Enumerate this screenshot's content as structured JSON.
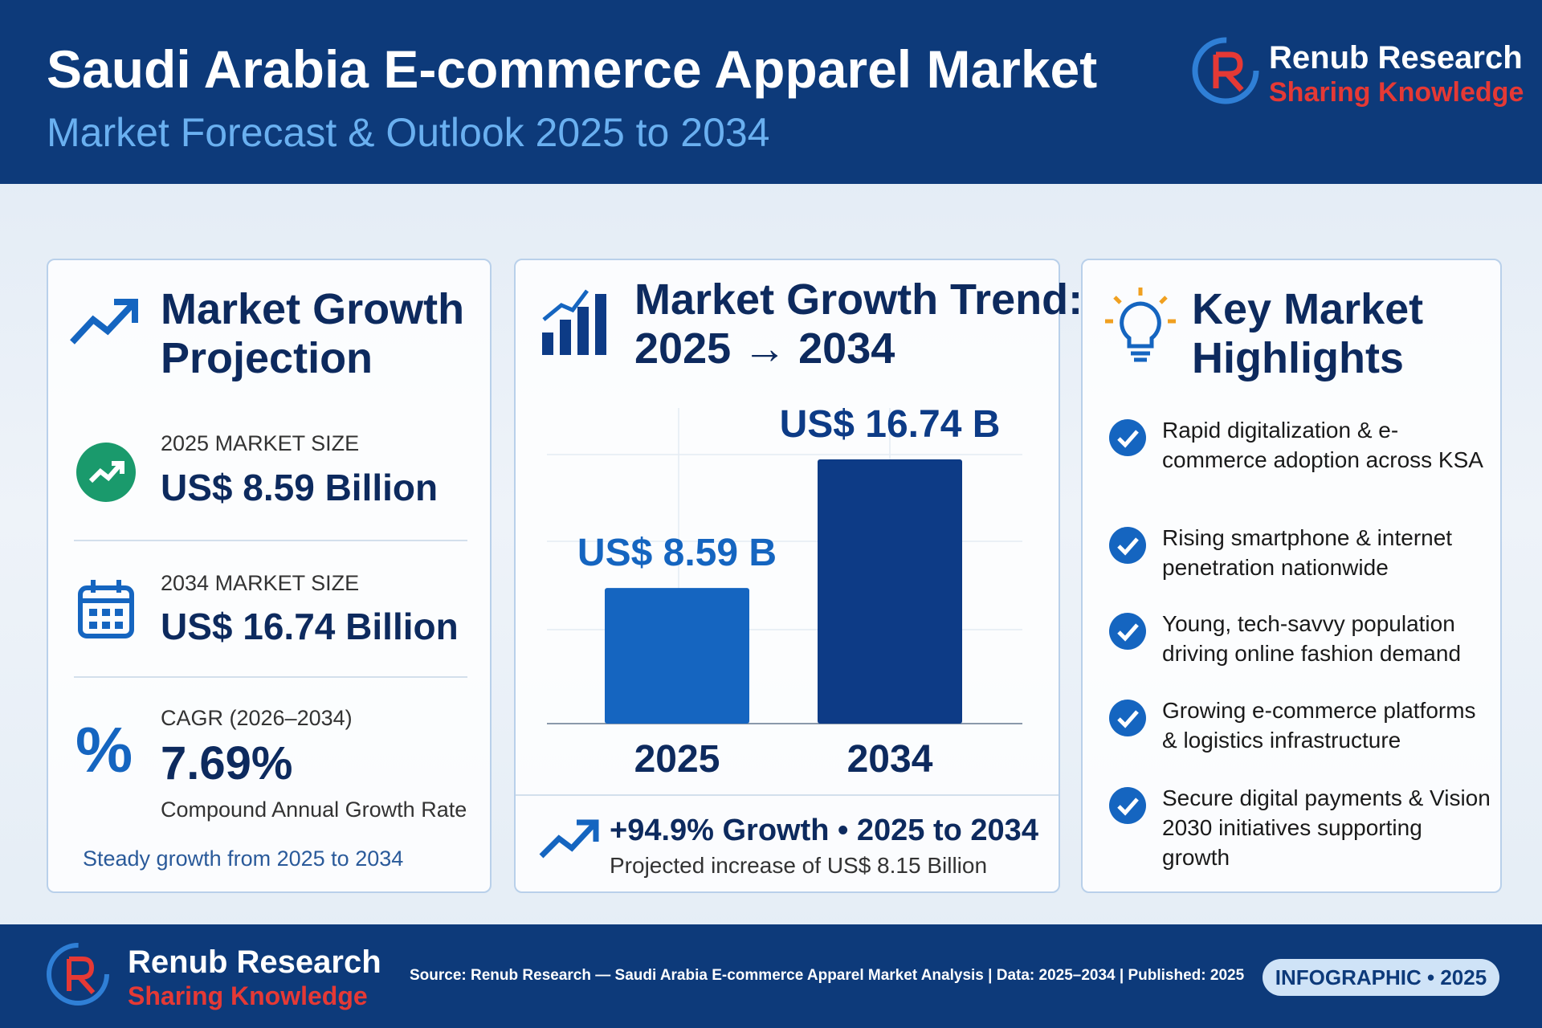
{
  "header": {
    "title": "Saudi Arabia E-commerce Apparel Market",
    "subtitle": "Market Forecast & Outlook 2025 to 2034",
    "brand": "Renub Research",
    "tagline": "Sharing Knowledge"
  },
  "projection": {
    "title": "Market Growth Projection",
    "items": [
      {
        "label": "2025 MARKET SIZE",
        "value": "US$ 8.59 Billion"
      },
      {
        "label": "2034 MARKET SIZE",
        "value": "US$ 16.74 Billion"
      }
    ],
    "cagr": {
      "icon": "%",
      "label": "CAGR (2026–2034)",
      "value": "7.69%",
      "caption": "Compound Annual Growth Rate"
    },
    "note": "Steady growth from 2025 to 2034"
  },
  "chart_data": {
    "type": "bar",
    "title": "Market Growth Trend: 2025 → 2034",
    "categories": [
      "2025",
      "2034"
    ],
    "values": [
      8.59,
      16.74
    ],
    "value_labels": [
      "US$ 8.59 B",
      "US$ 16.74 B"
    ],
    "colors": [
      "#1565c0",
      "#0d3b86"
    ],
    "growth": "+94.9% Growth • 2025 to 2034",
    "growth_note": "Projected increase of US$ 8.15 Billion"
  },
  "highlights": {
    "title": "Key Market Highlights",
    "items": [
      "Rapid digitalization & e-commerce adoption across KSA",
      "Rising smartphone & internet penetration nationwide",
      "Young, tech-savvy population driving online fashion demand",
      "Growing e-commerce platforms & logistics infrastructure",
      "Secure digital payments & Vision 2030 initiatives supporting growth"
    ]
  },
  "footer": {
    "brand": "Renub Research",
    "tagline": "Sharing Knowledge",
    "source": "Source: Renub Research — Saudi Arabia E-commerce Apparel Market Analysis | Data: 2025–2034 | Published: 2025",
    "badge": "INFOGRAPHIC • 2025"
  }
}
